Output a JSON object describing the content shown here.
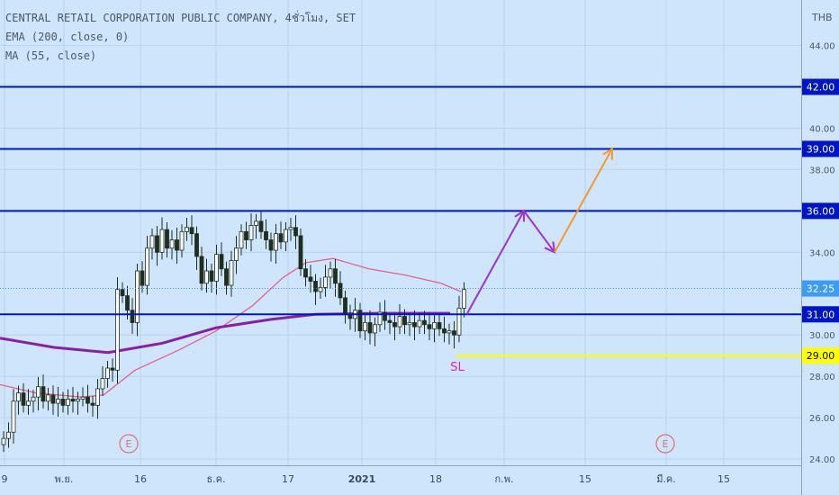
{
  "header": {
    "symbol_line": "CENTRAL RETAIL CORPORATION PUBLIC COMPANY, 4ชั่วโมง, SET",
    "ema_line": "EMA (200, close, 0)",
    "ma_line": "MA (55, close)",
    "currency": "THB"
  },
  "colors": {
    "background": "#cfe5fb",
    "grid": "#b7d3ee",
    "level_line": "#0015c4",
    "level_badge": "#0015c4",
    "price_badge": "#3b9cf2",
    "sl_line": "#ffff00",
    "sl_text": "#e020c8",
    "ema": "#8a1fa6",
    "ma": "#e8608a",
    "candle": "#1f2f1f",
    "arrow_purple": "#9c32d8",
    "arrow_orange": "#f49a2a",
    "earnings": "#e07070"
  },
  "chart_data": {
    "type": "candlestick",
    "y_axis": {
      "labels": [
        "44.00",
        "40.00",
        "38.00",
        "34.00",
        "30.00",
        "28.00",
        "26.00",
        "24.00"
      ],
      "values": [
        44,
        40,
        38,
        34,
        30,
        28,
        26,
        24
      ],
      "ylim": [
        23.7,
        46.2
      ]
    },
    "x_axis": {
      "labels": [
        "9",
        "พ.ย.",
        "16",
        "ธ.ค.",
        "17",
        "2021",
        "18",
        "ก.พ.",
        "15",
        "มี.ค.",
        "15"
      ],
      "bold": [
        "2021"
      ]
    },
    "levels": [
      {
        "value": 42.0,
        "label": "42.00"
      },
      {
        "value": 39.0,
        "label": "39.00"
      },
      {
        "value": 36.0,
        "label": "36.00"
      },
      {
        "value": 31.0,
        "label": "31.00"
      }
    ],
    "last_price": {
      "value": 32.25,
      "label": "32.25"
    },
    "stop_loss": {
      "value": 29.0,
      "label": "29.00",
      "text": "SL"
    },
    "earnings_markers": [
      "E",
      "E"
    ],
    "candles_close_path": [
      25.0,
      25.3,
      26.8,
      27.2,
      26.6,
      26.8,
      27.0,
      27.5,
      26.8,
      27.1,
      26.7,
      26.9,
      26.6,
      26.9,
      26.8,
      26.9,
      27.0,
      26.7,
      26.6,
      27.4,
      27.9,
      28.4,
      28.3,
      32.2,
      31.9,
      31.2,
      30.6,
      33.1,
      32.4,
      34.2,
      34.8,
      34.0,
      35.1,
      34.2,
      34.6,
      34.1,
      35.0,
      35.2,
      34.9,
      33.8,
      32.5,
      33.1,
      32.6,
      33.9,
      33.2,
      32.4,
      33.6,
      34.2,
      35.0,
      34.6,
      35.3,
      35.5,
      35.0,
      34.6,
      34.1,
      34.9,
      34.5,
      35.1,
      35.2,
      34.8,
      33.2,
      32.8,
      32.6,
      32.1,
      32.3,
      32.8,
      33.2,
      32.5,
      31.8,
      31.0,
      30.8,
      31.2,
      30.2,
      30.6,
      30.1,
      30.5,
      31.1,
      30.7,
      30.6,
      30.4,
      30.9,
      30.5,
      30.6,
      30.4,
      30.7,
      30.5,
      30.3,
      30.6,
      30.3,
      30.1,
      30.2,
      30.0,
      31.3,
      32.2
    ]
  },
  "projection": {
    "points": [
      {
        "label": "start",
        "price": 31.0
      },
      {
        "label": "peak",
        "price": 36.0
      },
      {
        "label": "pullback",
        "price": 34.0
      },
      {
        "label": "target",
        "price": 39.0
      }
    ]
  }
}
